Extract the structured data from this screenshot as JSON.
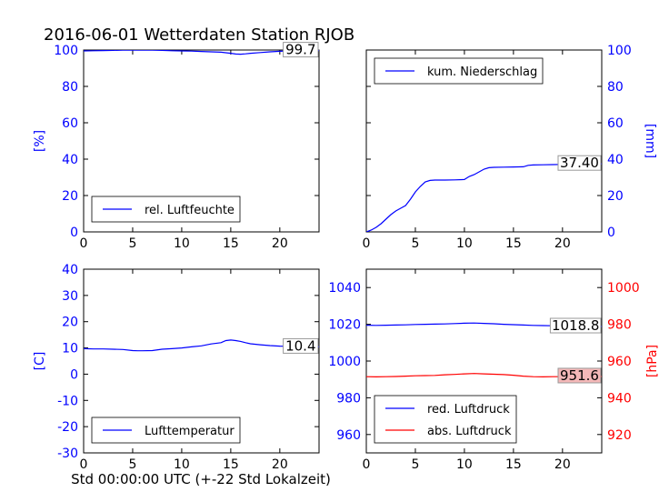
{
  "figure_title": "2016-06-01 Wetterdaten Station RJOB",
  "footer_label": "Std 00:00:00 UTC (+-22 Std Lokalzeit)",
  "colors": {
    "blue": "#0000ff",
    "red": "#ff0000",
    "black": "#000000",
    "highlight_fill": "#f4b8b8",
    "box_edge": "#999999"
  },
  "chart_data": [
    {
      "type": "line",
      "panel": "top-left",
      "ylabel": "[%]",
      "xlim": [
        0,
        24
      ],
      "ylim": [
        0,
        100
      ],
      "xticks": [
        0,
        5,
        10,
        15,
        20
      ],
      "yticks": [
        0,
        20,
        40,
        60,
        80,
        100
      ],
      "legend_placement": "lower-left",
      "series": [
        {
          "name": "rel. Luftfeuchte",
          "color": "#0000ff",
          "x": [
            0,
            1,
            2,
            3,
            4,
            5,
            6,
            7,
            8,
            9,
            10,
            11,
            12,
            13,
            14,
            14.5,
            15,
            15.5,
            16,
            16.5,
            17,
            18,
            19,
            20,
            21,
            22,
            23,
            24
          ],
          "y": [
            99.5,
            99.6,
            99.7,
            99.8,
            99.9,
            99.9,
            99.9,
            99.9,
            99.8,
            99.6,
            99.5,
            99.4,
            99.2,
            99.0,
            98.8,
            98.5,
            98.2,
            97.8,
            97.7,
            97.9,
            98.2,
            98.6,
            99.0,
            99.3,
            99.5,
            99.6,
            99.7,
            99.7
          ]
        }
      ],
      "last_value_label": "99.7"
    },
    {
      "type": "line",
      "panel": "top-right",
      "ylabel": "[mm]",
      "xlim": [
        0,
        24
      ],
      "ylim": [
        0,
        100
      ],
      "xticks": [
        0,
        5,
        10,
        15,
        20
      ],
      "yticks": [
        0,
        20,
        40,
        60,
        80,
        100
      ],
      "legend_placement": "top-left",
      "series": [
        {
          "name": "kum. Niederschlag",
          "color": "#0000ff",
          "x": [
            0,
            0.5,
            1,
            1.5,
            2,
            2.5,
            3,
            3.5,
            4,
            4.5,
            5,
            5.5,
            6,
            6.5,
            7,
            8,
            9,
            10,
            10.5,
            11,
            11.5,
            12,
            12.5,
            13,
            14,
            15,
            16,
            16.5,
            17,
            18,
            19,
            20,
            21,
            22,
            23,
            24
          ],
          "y": [
            0,
            1,
            2.5,
            4.5,
            7,
            9.5,
            11.5,
            13,
            14.5,
            18,
            22,
            25,
            27.5,
            28.3,
            28.5,
            28.5,
            28.6,
            28.8,
            30.5,
            31.5,
            33,
            34.5,
            35.3,
            35.5,
            35.6,
            35.7,
            35.8,
            36.6,
            36.8,
            36.9,
            37.0,
            37.1,
            37.2,
            37.3,
            37.4,
            37.4
          ]
        }
      ],
      "last_value_label": "37.40"
    },
    {
      "type": "line",
      "panel": "bottom-left",
      "ylabel": "[C]",
      "xlim": [
        0,
        24
      ],
      "ylim": [
        -30,
        40
      ],
      "xticks": [
        0,
        5,
        10,
        15,
        20
      ],
      "yticks": [
        -30,
        -20,
        -10,
        0,
        10,
        20,
        30,
        40
      ],
      "legend_placement": "lower-left",
      "series": [
        {
          "name": "Lufttemperatur",
          "color": "#0000ff",
          "x": [
            0,
            1,
            2,
            3,
            4,
            5,
            5.5,
            6,
            7,
            8,
            9,
            10,
            11,
            12,
            13,
            14,
            14.5,
            15,
            15.5,
            16,
            16.5,
            17,
            18,
            19,
            20,
            21,
            22,
            23,
            24
          ],
          "y": [
            9.7,
            9.6,
            9.6,
            9.5,
            9.4,
            9.0,
            8.9,
            8.9,
            9.0,
            9.5,
            9.7,
            10.0,
            10.4,
            10.8,
            11.5,
            12.0,
            12.8,
            13.0,
            12.8,
            12.5,
            12.0,
            11.6,
            11.2,
            10.9,
            10.7,
            10.6,
            10.5,
            10.4,
            10.4
          ]
        }
      ],
      "last_value_label": "10.4"
    },
    {
      "type": "line",
      "panel": "bottom-right",
      "ylabel_right": "[hPa]",
      "xlim": [
        0,
        24
      ],
      "ylim_left": [
        950,
        1050
      ],
      "ylim_right": [
        910,
        1010
      ],
      "xticks": [
        0,
        5,
        10,
        15,
        20
      ],
      "yticks_left": [
        960,
        980,
        1000,
        1020,
        1040
      ],
      "yticks_right": [
        920,
        940,
        960,
        980,
        1000
      ],
      "legend_placement": "lower-left",
      "series": [
        {
          "name": "red. Luftdruck",
          "axis": "left",
          "color": "#0000ff",
          "x": [
            0,
            1,
            2,
            3,
            4,
            5,
            6,
            7,
            8,
            9,
            10,
            11,
            12,
            13,
            14,
            15,
            16,
            17,
            18,
            19,
            20,
            21,
            22,
            23,
            24
          ],
          "y": [
            1019.5,
            1019.4,
            1019.5,
            1019.6,
            1019.7,
            1019.9,
            1020.0,
            1020.1,
            1020.2,
            1020.4,
            1020.6,
            1020.7,
            1020.5,
            1020.3,
            1020.0,
            1019.8,
            1019.6,
            1019.4,
            1019.3,
            1019.2,
            1019.1,
            1019.0,
            1018.9,
            1018.8,
            1018.8
          ]
        },
        {
          "name": "abs. Luftdruck",
          "axis": "right",
          "color": "#ff0000",
          "x": [
            0,
            1,
            2,
            3,
            4,
            5,
            6,
            7,
            8,
            9,
            10,
            11,
            12,
            13,
            14,
            15,
            16,
            17,
            18,
            19,
            20,
            21,
            22,
            23,
            24
          ],
          "y": [
            951.5,
            951.4,
            951.5,
            951.6,
            951.8,
            952.0,
            952.1,
            952.2,
            952.5,
            952.7,
            953.0,
            953.2,
            953.0,
            952.8,
            952.6,
            952.3,
            951.8,
            951.5,
            951.4,
            951.5,
            951.5,
            951.6,
            951.6,
            951.6,
            951.6
          ]
        }
      ],
      "last_value_labels": [
        "1018.8",
        "951.6"
      ]
    }
  ]
}
